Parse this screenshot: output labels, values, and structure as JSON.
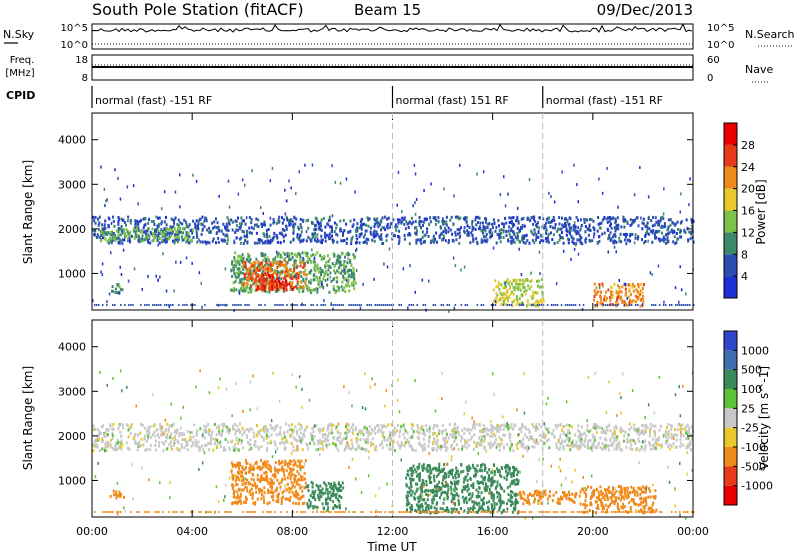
{
  "header": {
    "station": "South Pole Station (fitACF)",
    "beam": "Beam 15",
    "date": "09/Dec/2013"
  },
  "top_panels": {
    "nsky_label": "N.Sky",
    "nsearch_label": "N.Search",
    "nsky_ticks": [
      "10^5",
      "10^0"
    ],
    "nsearch_ticks": [
      "10^5",
      "10^0"
    ],
    "freq_label_1": "Freq.",
    "freq_label_2": "[MHz]",
    "freq_ticks": [
      "18",
      "8"
    ],
    "nave_label": "Nave",
    "nave_ticks": [
      "60",
      "0"
    ],
    "cpid_label": "CPID",
    "cpid_segments": [
      {
        "label": "normal (fast) -151 RF",
        "start_hour": 0,
        "end_hour": 12
      },
      {
        "label": "normal (fast) 151 RF",
        "start_hour": 12,
        "end_hour": 18
      },
      {
        "label": "normal (fast) -151 RF",
        "start_hour": 18,
        "end_hour": 24
      }
    ]
  },
  "x_axis": {
    "label": "Time UT",
    "ticks": [
      "00:00",
      "04:00",
      "08:00",
      "12:00",
      "16:00",
      "20:00",
      "00:00"
    ]
  },
  "power_panel": {
    "ylabel": "Slant Range [km]",
    "yticks": [
      "1000",
      "2000",
      "3000",
      "4000"
    ],
    "colorbar_label": "Power [dB]",
    "colorbar_ticks": [
      "4",
      "8",
      "12",
      "16",
      "20",
      "24",
      "28"
    ],
    "colors": [
      "#1f2fd8",
      "#2a4fb0",
      "#3c8a6a",
      "#7fc24a",
      "#e8c82a",
      "#f08a1a",
      "#e83a1a",
      "#e80000"
    ]
  },
  "velocity_panel": {
    "ylabel": "Slant Range [km]",
    "yticks": [
      "1000",
      "2000",
      "3000",
      "4000"
    ],
    "colorbar_label": "Velocity [m s^-1]",
    "colorbar_ticks": [
      "1000",
      "500",
      "100",
      "25",
      "-25",
      "-100",
      "-500",
      "-1000"
    ],
    "colors": [
      "#2f47c8",
      "#3f6fb0",
      "#3b8a5a",
      "#5cc23a",
      "#c8c8c8",
      "#e8c82a",
      "#f08a1a",
      "#e83a1a",
      "#e80000"
    ]
  },
  "chart_data": [
    {
      "type": "heatmap",
      "title": "Power [dB]",
      "xlabel": "Time UT",
      "ylabel": "Slant Range [km]",
      "xlim": [
        0,
        24
      ],
      "ylim": [
        180,
        4600
      ],
      "zlim": [
        0,
        30
      ],
      "regions": [
        {
          "x0": 0.0,
          "x1": 24.0,
          "y0": 1700,
          "y1": 2300,
          "value": 6
        },
        {
          "x0": 0.3,
          "x1": 4.0,
          "y0": 1750,
          "y1": 2050,
          "value": 12
        },
        {
          "x0": 5.5,
          "x1": 10.5,
          "y0": 600,
          "y1": 1500,
          "value": 12
        },
        {
          "x0": 6.0,
          "x1": 8.5,
          "y0": 700,
          "y1": 1300,
          "value": 24
        },
        {
          "x0": 6.5,
          "x1": 8.0,
          "y0": 650,
          "y1": 1000,
          "value": 28
        },
        {
          "x0": 0.7,
          "x1": 1.2,
          "y0": 600,
          "y1": 800,
          "value": 10
        },
        {
          "x0": 16.0,
          "x1": 18.0,
          "y0": 300,
          "y1": 900,
          "value": 16
        },
        {
          "x0": 20.0,
          "x1": 22.0,
          "y0": 300,
          "y1": 800,
          "value": 22
        }
      ]
    },
    {
      "type": "heatmap",
      "title": "Velocity [m s^-1]",
      "xlabel": "Time UT",
      "ylabel": "Slant Range [km]",
      "xlim": [
        0,
        24
      ],
      "ylim": [
        180,
        4600
      ],
      "zlim": [
        -1000,
        1000
      ],
      "regions": [
        {
          "x0": 0.0,
          "x1": 24.0,
          "y0": 1700,
          "y1": 2300,
          "value": 0
        },
        {
          "x0": 5.5,
          "x1": 8.5,
          "y0": 500,
          "y1": 1500,
          "value": -150
        },
        {
          "x0": 8.5,
          "x1": 10.0,
          "y0": 400,
          "y1": 1000,
          "value": 150
        },
        {
          "x0": 12.5,
          "x1": 17.0,
          "y0": 300,
          "y1": 1400,
          "value": 150
        },
        {
          "x0": 17.0,
          "x1": 19.5,
          "y0": 500,
          "y1": 800,
          "value": -400
        },
        {
          "x0": 19.5,
          "x1": 22.5,
          "y0": 300,
          "y1": 900,
          "value": -400
        },
        {
          "x0": 0.7,
          "x1": 1.3,
          "y0": 600,
          "y1": 800,
          "value": -400
        }
      ]
    }
  ]
}
